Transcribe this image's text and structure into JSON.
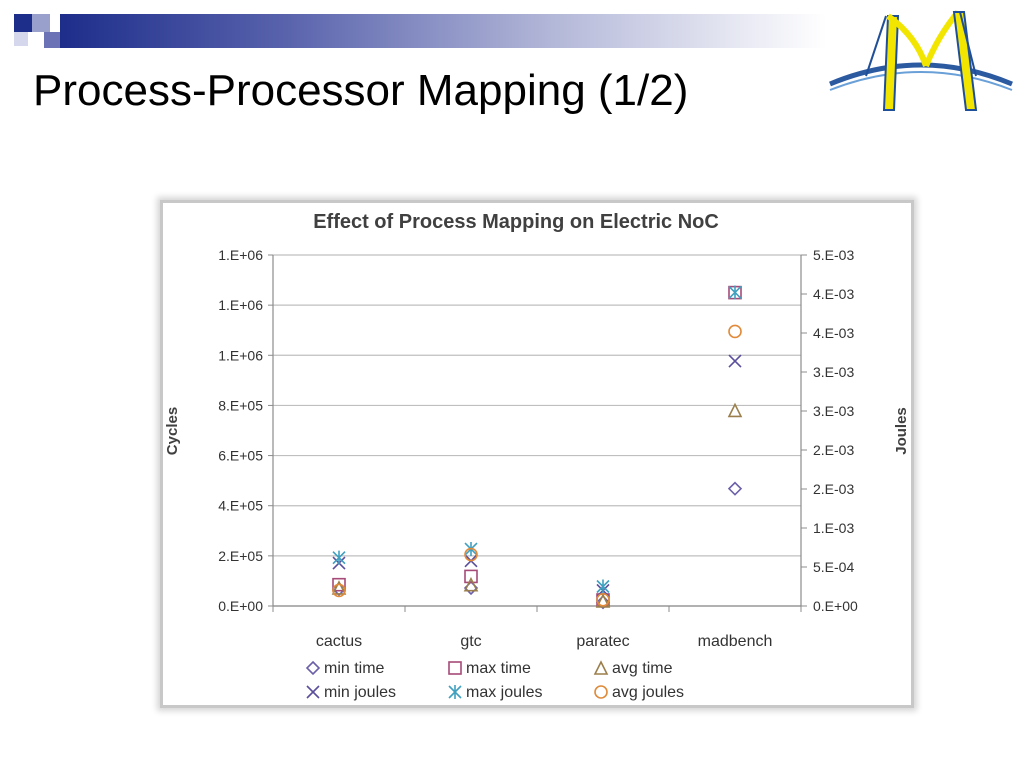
{
  "slide": {
    "title": "Process-Processor Mapping (1/2)",
    "colors": {
      "bar_dark": "#1d2d8a",
      "bar_light": "#b5b9d9",
      "logo_blue": "#2c5aa0",
      "logo_yellow": "#f2e600"
    }
  },
  "chart_data": {
    "type": "scatter",
    "title": "Effect of Process Mapping on Electric NoC",
    "xlabel": "",
    "ylabel": "Cycles",
    "y2label": "Joules",
    "categories": [
      "cactus",
      "gtc",
      "paratec",
      "madbench"
    ],
    "ylim": [
      0,
      1400000
    ],
    "y2lim": [
      0,
      0.0045
    ],
    "y_ticks": [
      "0.E+00",
      "2.E+05",
      "4.E+05",
      "6.E+05",
      "8.E+05",
      "1.E+06",
      "1.E+06",
      "1.E+06"
    ],
    "y2_ticks": [
      "0.E+00",
      "5.E-04",
      "1.E-03",
      "2.E-03",
      "2.E-03",
      "3.E-03",
      "3.E-03",
      "4.E-03",
      "4.E-03",
      "5.E-03"
    ],
    "legend_position": "bottom",
    "grid": true,
    "series": [
      {
        "name": "min time",
        "axis": "left",
        "marker": "diamond",
        "color": "#6b5fa8",
        "values": [
          68000,
          72000,
          15000,
          468000
        ]
      },
      {
        "name": "max time",
        "axis": "left",
        "marker": "square",
        "color": "#a64a78",
        "values": [
          85000,
          118000,
          24000,
          1250000
        ]
      },
      {
        "name": "avg time",
        "axis": "left",
        "marker": "triangle",
        "color": "#9a7f4c",
        "values": [
          72000,
          85000,
          20000,
          780000
        ]
      },
      {
        "name": "min joules",
        "axis": "right",
        "marker": "x",
        "color": "#5a4f9c",
        "values": [
          0.00055,
          0.00058,
          0.0002,
          0.00314
        ]
      },
      {
        "name": "max joules",
        "axis": "right",
        "marker": "star",
        "color": "#3fa0bf",
        "values": [
          0.00062,
          0.00073,
          0.00025,
          0.00402
        ]
      },
      {
        "name": "avg joules",
        "axis": "right",
        "marker": "circle",
        "color": "#e08a3a",
        "values": [
          0.0002,
          0.00066,
          8e-05,
          0.00352
        ]
      }
    ]
  }
}
